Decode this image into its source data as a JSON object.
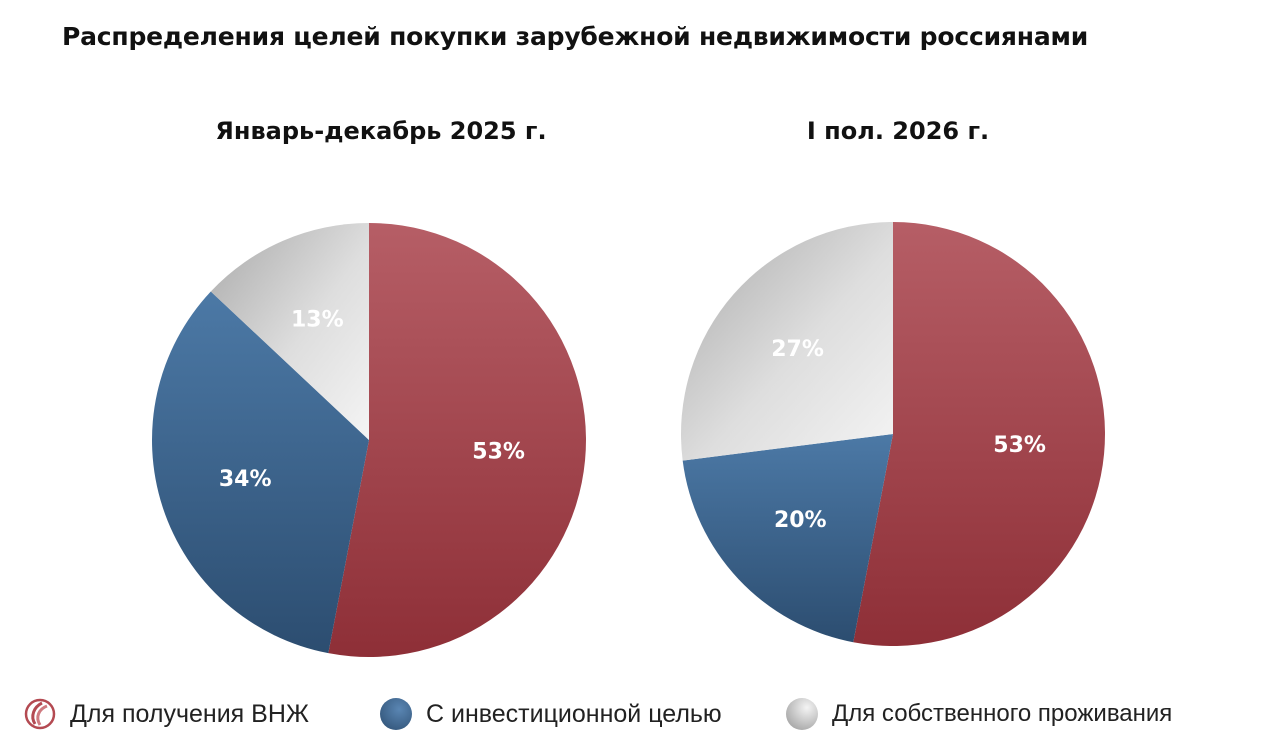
{
  "title": "Распределения целей покупки зарубежной недвижимости россиянами",
  "colors": {
    "vnzh": "#a3434b",
    "investment": "#3a628d",
    "residence": "#d2d2d2"
  },
  "legend": [
    {
      "label": "Для получения ВНЖ",
      "icon": "brand-logo-icon",
      "color": "#a3434b"
    },
    {
      "label": "С инвестиционной целью",
      "color": "#3a628d"
    },
    {
      "label": "Для собственного проживания",
      "color": "#d2d2d2"
    }
  ],
  "chart_data": [
    {
      "type": "pie",
      "title": "Январь-декабрь 2025 г.",
      "categories": [
        "Для получения ВНЖ",
        "С инвестиционной целью",
        "Для собственного проживания"
      ],
      "values": [
        53,
        34,
        13
      ],
      "labels": [
        "53%",
        "34%",
        "13%"
      ],
      "unit": "%",
      "legend_position": "bottom"
    },
    {
      "type": "pie",
      "title": "I пол. 2026 г.",
      "categories": [
        "Для получения ВНЖ",
        "С инвестиционной целью",
        "Для собственного проживания"
      ],
      "values": [
        53,
        20,
        27
      ],
      "labels": [
        "53%",
        "20%",
        "27%"
      ],
      "unit": "%",
      "legend_position": "bottom"
    }
  ]
}
